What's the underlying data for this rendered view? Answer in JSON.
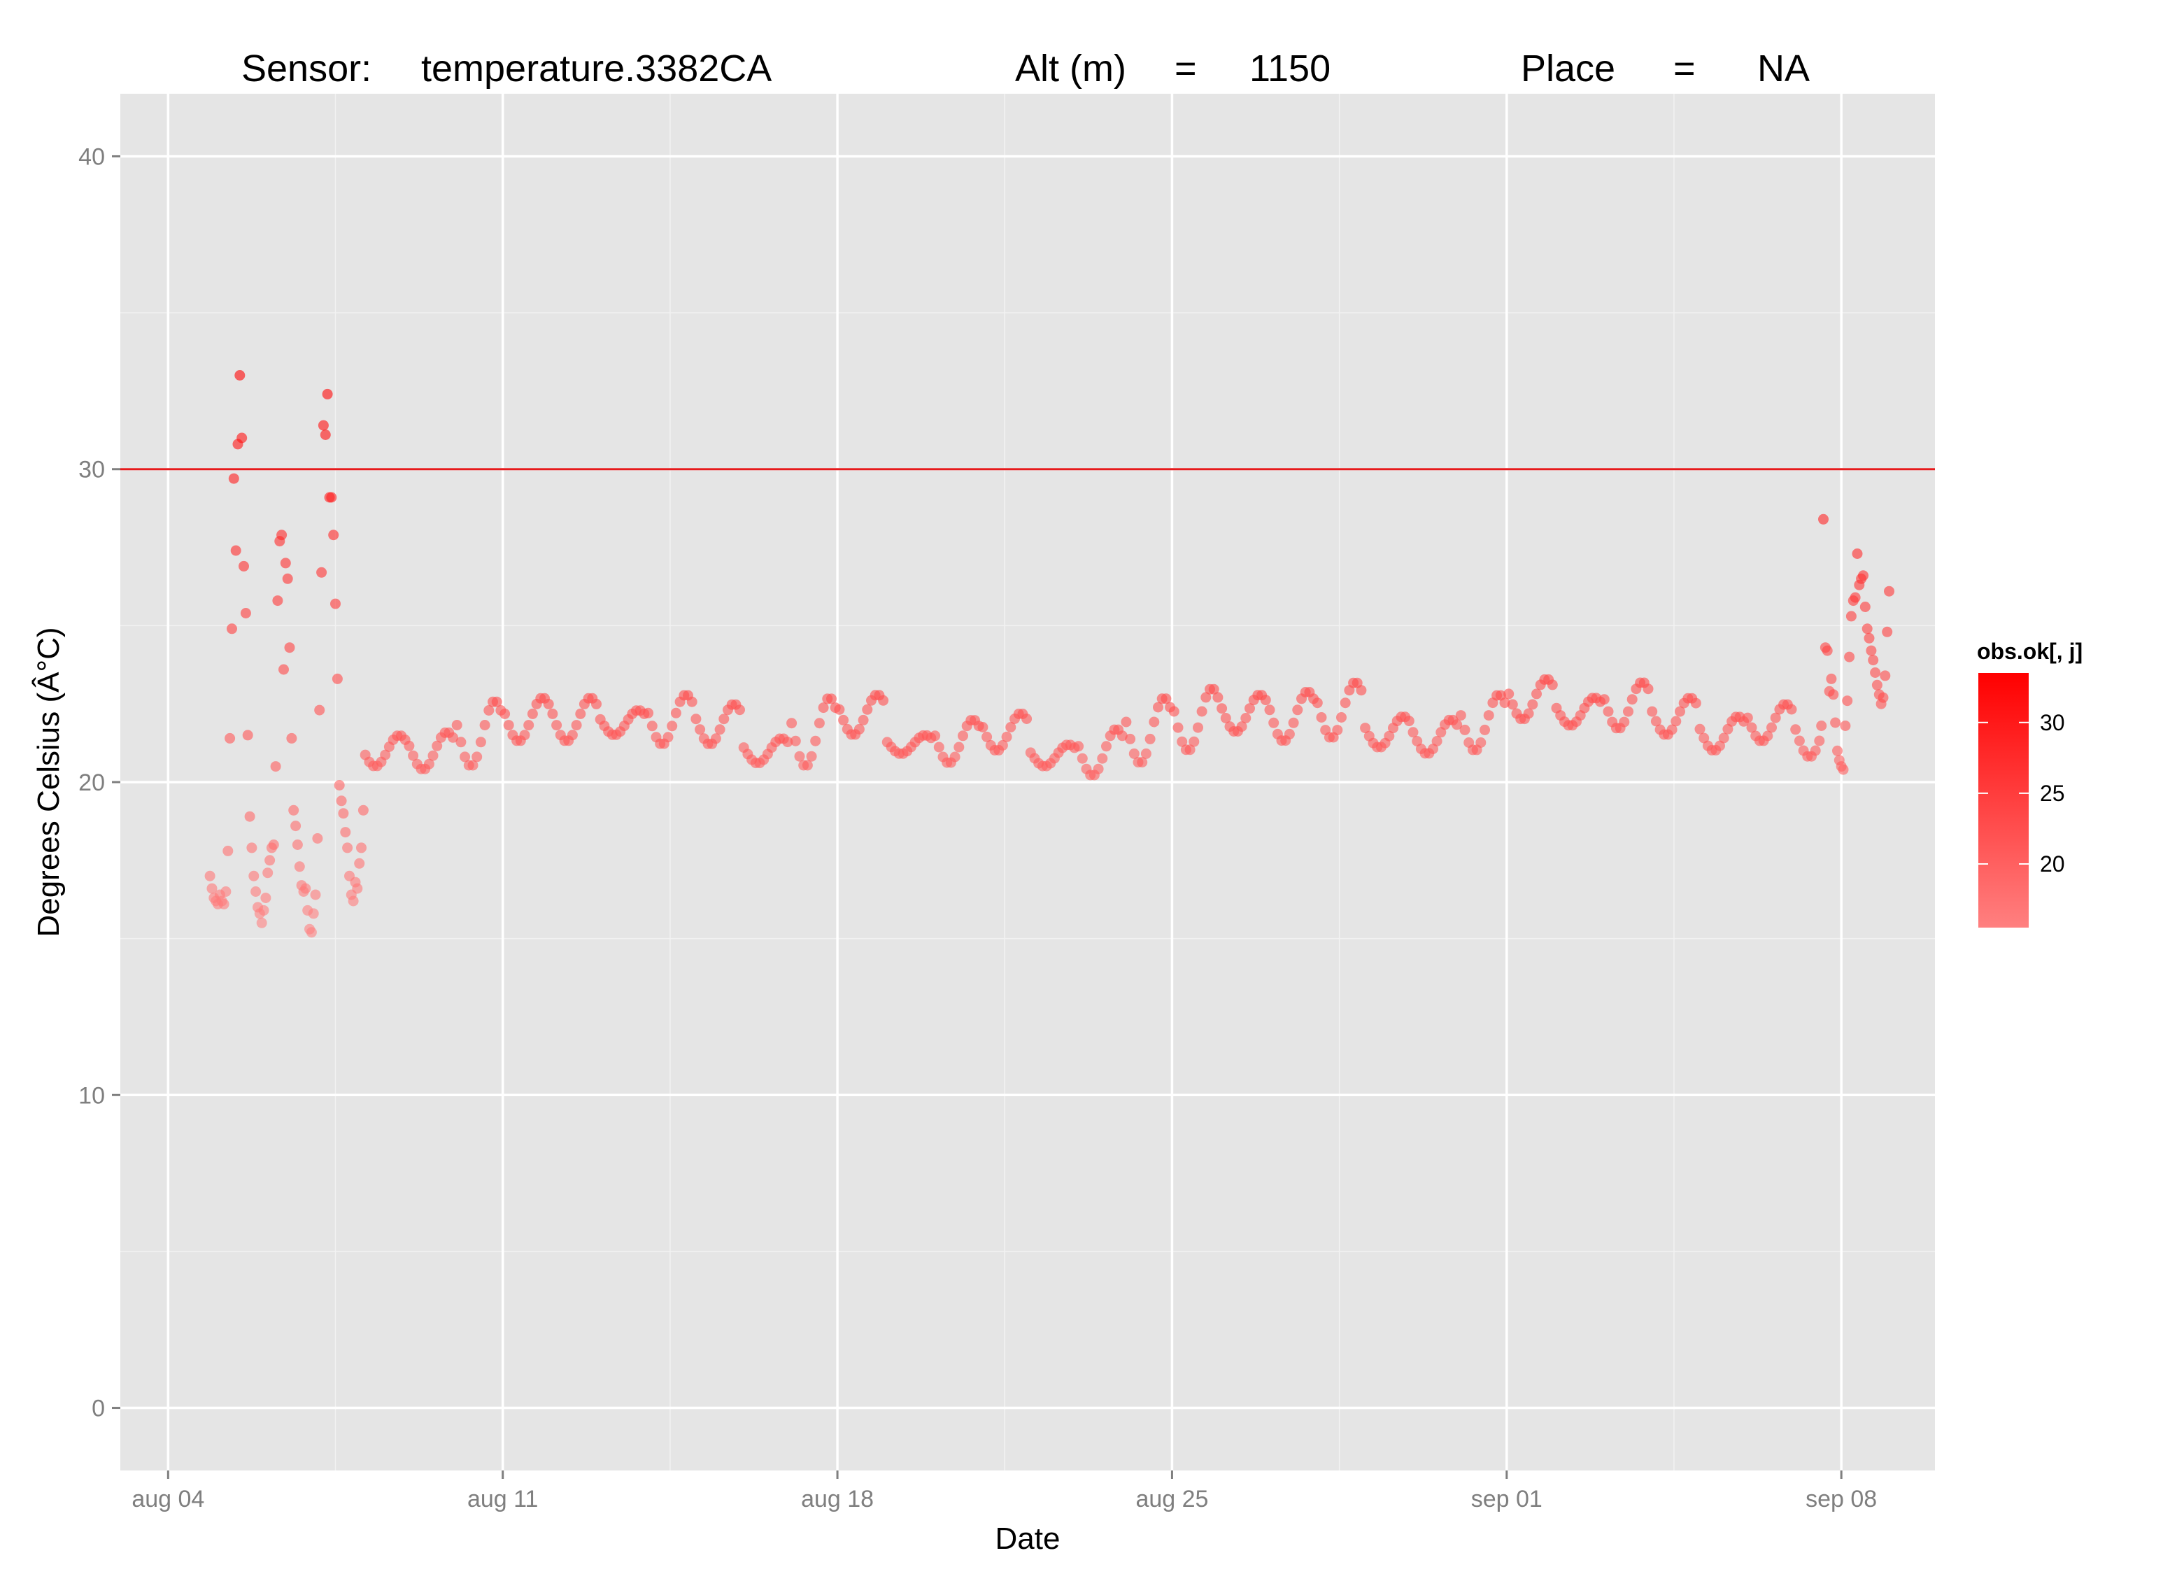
{
  "chart_data": {
    "type": "scatter",
    "title_parts": {
      "sensor_label": "Sensor:",
      "sensor_value": "temperature.3382CA",
      "alt_label": "Alt (m)",
      "alt_eq": "=",
      "alt_value": "1150",
      "place_label": "Place",
      "place_eq": "=",
      "place_value": "NA"
    },
    "xlabel": "Date",
    "ylabel": "Degrees Celsius (Â°C)",
    "xlim": [
      "2014-08-03T00:00",
      "2014-09-09T23:00"
    ],
    "ylim": [
      -2,
      42
    ],
    "x_ticks": [
      {
        "date": "2014-08-04",
        "label": "aug 04"
      },
      {
        "date": "2014-08-11",
        "label": "aug 11"
      },
      {
        "date": "2014-08-18",
        "label": "aug 18"
      },
      {
        "date": "2014-08-25",
        "label": "aug 25"
      },
      {
        "date": "2014-09-01",
        "label": "sep 01"
      },
      {
        "date": "2014-09-08",
        "label": "sep 08"
      }
    ],
    "y_ticks": [
      {
        "value": 0,
        "label": "0"
      },
      {
        "value": 10,
        "label": "10"
      },
      {
        "value": 20,
        "label": "20"
      },
      {
        "value": 30,
        "label": "30"
      },
      {
        "value": 40,
        "label": "40"
      }
    ],
    "grid": true,
    "reference_line": {
      "value": 30,
      "color": "#E41A1C"
    },
    "point_color_low": "#FF8080",
    "point_color_high": "#FF0000",
    "legend": {
      "title": "obs.ok[, j]",
      "position": "right",
      "range": [
        15.5,
        33.5
      ],
      "ticks": [
        {
          "value": 20,
          "label": "20"
        },
        {
          "value": 25,
          "label": "25"
        },
        {
          "value": 30,
          "label": "30"
        }
      ]
    },
    "series": [
      {
        "points": [
          [
            "2014-08-04T21:00",
            17.0
          ],
          [
            "2014-08-04T22:00",
            16.6
          ],
          [
            "2014-08-04T23:00",
            16.3
          ],
          [
            "2014-08-05T00:00",
            16.2
          ],
          [
            "2014-08-05T01:00",
            16.1
          ],
          [
            "2014-08-05T02:00",
            16.4
          ],
          [
            "2014-08-05T03:00",
            16.2
          ],
          [
            "2014-08-05T04:00",
            16.1
          ],
          [
            "2014-08-05T05:00",
            16.5
          ],
          [
            "2014-08-05T06:00",
            17.8
          ],
          [
            "2014-08-05T07:00",
            21.4
          ],
          [
            "2014-08-05T08:00",
            24.9
          ],
          [
            "2014-08-05T09:00",
            29.7
          ],
          [
            "2014-08-05T10:00",
            27.4
          ],
          [
            "2014-08-05T11:00",
            30.8
          ],
          [
            "2014-08-05T12:00",
            33.0
          ],
          [
            "2014-08-05T13:00",
            31.0
          ],
          [
            "2014-08-05T14:00",
            26.9
          ],
          [
            "2014-08-05T15:00",
            25.4
          ],
          [
            "2014-08-05T16:00",
            21.5
          ],
          [
            "2014-08-05T17:00",
            18.9
          ],
          [
            "2014-08-05T18:00",
            17.9
          ],
          [
            "2014-08-05T19:00",
            17.0
          ],
          [
            "2014-08-05T20:00",
            16.5
          ],
          [
            "2014-08-05T21:00",
            16.0
          ],
          [
            "2014-08-05T22:00",
            15.8
          ],
          [
            "2014-08-05T23:00",
            15.5
          ],
          [
            "2014-08-06T00:00",
            15.9
          ],
          [
            "2014-08-06T01:00",
            16.3
          ],
          [
            "2014-08-06T02:00",
            17.1
          ],
          [
            "2014-08-06T03:00",
            17.5
          ],
          [
            "2014-08-06T04:00",
            17.9
          ],
          [
            "2014-08-06T05:00",
            18.0
          ],
          [
            "2014-08-06T06:00",
            20.5
          ],
          [
            "2014-08-06T07:00",
            25.8
          ],
          [
            "2014-08-06T08:00",
            27.7
          ],
          [
            "2014-08-06T09:00",
            27.9
          ],
          [
            "2014-08-06T10:00",
            23.6
          ],
          [
            "2014-08-06T11:00",
            27.0
          ],
          [
            "2014-08-06T12:00",
            26.5
          ],
          [
            "2014-08-06T13:00",
            24.3
          ],
          [
            "2014-08-06T14:00",
            21.4
          ],
          [
            "2014-08-06T15:00",
            19.1
          ],
          [
            "2014-08-06T16:00",
            18.6
          ],
          [
            "2014-08-06T17:00",
            18.0
          ],
          [
            "2014-08-06T18:00",
            17.3
          ],
          [
            "2014-08-06T19:00",
            16.7
          ],
          [
            "2014-08-06T20:00",
            16.5
          ],
          [
            "2014-08-06T21:00",
            16.6
          ],
          [
            "2014-08-06T22:00",
            15.9
          ],
          [
            "2014-08-06T23:00",
            15.3
          ],
          [
            "2014-08-07T00:00",
            15.2
          ],
          [
            "2014-08-07T01:00",
            15.8
          ],
          [
            "2014-08-07T02:00",
            16.4
          ],
          [
            "2014-08-07T03:00",
            18.2
          ],
          [
            "2014-08-07T04:00",
            22.3
          ],
          [
            "2014-08-07T05:00",
            26.7
          ],
          [
            "2014-08-07T06:00",
            31.4
          ],
          [
            "2014-08-07T07:00",
            31.1
          ],
          [
            "2014-08-07T08:00",
            32.4
          ],
          [
            "2014-08-07T09:00",
            29.1
          ],
          [
            "2014-08-07T10:00",
            29.1
          ],
          [
            "2014-08-07T11:00",
            27.9
          ],
          [
            "2014-08-07T12:00",
            25.7
          ],
          [
            "2014-08-07T13:00",
            23.3
          ],
          [
            "2014-08-07T14:00",
            19.9
          ],
          [
            "2014-08-07T15:00",
            19.4
          ],
          [
            "2014-08-07T16:00",
            19.0
          ],
          [
            "2014-08-07T17:00",
            18.4
          ],
          [
            "2014-08-07T18:00",
            17.9
          ],
          [
            "2014-08-07T19:00",
            17.0
          ],
          [
            "2014-08-07T20:00",
            16.4
          ],
          [
            "2014-08-07T21:00",
            16.2
          ],
          [
            "2014-08-07T22:00",
            16.8
          ],
          [
            "2014-08-07T23:00",
            16.6
          ],
          [
            "2014-08-08T00:00",
            17.4
          ],
          [
            "2014-08-08T01:00",
            17.9
          ],
          [
            "2014-08-08T02:00",
            19.1
          ],
          [
            "2014-09-07T14:00",
            21.8
          ],
          [
            "2014-09-07T15:00",
            28.4
          ],
          [
            "2014-09-07T16:00",
            24.3
          ],
          [
            "2014-09-07T17:00",
            24.2
          ],
          [
            "2014-09-07T18:00",
            22.9
          ],
          [
            "2014-09-07T19:00",
            23.3
          ],
          [
            "2014-09-07T20:00",
            22.8
          ],
          [
            "2014-09-07T21:00",
            21.9
          ],
          [
            "2014-09-07T22:00",
            21.0
          ],
          [
            "2014-09-07T23:00",
            20.7
          ],
          [
            "2014-09-08T00:00",
            20.5
          ],
          [
            "2014-09-08T01:00",
            20.4
          ],
          [
            "2014-09-08T02:00",
            21.8
          ],
          [
            "2014-09-08T03:00",
            22.6
          ],
          [
            "2014-09-08T04:00",
            24.0
          ],
          [
            "2014-09-08T05:00",
            25.3
          ],
          [
            "2014-09-08T06:00",
            25.8
          ],
          [
            "2014-09-08T07:00",
            25.9
          ],
          [
            "2014-09-08T08:00",
            27.3
          ],
          [
            "2014-09-08T09:00",
            26.3
          ],
          [
            "2014-09-08T10:00",
            26.5
          ],
          [
            "2014-09-08T11:00",
            26.6
          ],
          [
            "2014-09-08T12:00",
            25.6
          ],
          [
            "2014-09-08T13:00",
            24.9
          ],
          [
            "2014-09-08T14:00",
            24.6
          ],
          [
            "2014-09-08T15:00",
            24.2
          ],
          [
            "2014-09-08T16:00",
            23.9
          ],
          [
            "2014-09-08T17:00",
            23.5
          ],
          [
            "2014-09-08T18:00",
            23.1
          ],
          [
            "2014-09-08T19:00",
            22.8
          ],
          [
            "2014-09-08T20:00",
            22.5
          ],
          [
            "2014-09-08T21:00",
            22.7
          ],
          [
            "2014-09-08T22:00",
            23.4
          ],
          [
            "2014-09-08T23:00",
            24.8
          ],
          [
            "2014-09-09T00:00",
            26.1
          ]
        ],
        "daily_cycle": {
          "start": "2014-08-08T03:00",
          "end": "2014-09-07T13:00",
          "step_hours": 2,
          "days": [
            {
              "date": "2014-08-08",
              "min": 20.5,
              "max": 21.5
            },
            {
              "date": "2014-08-09",
              "min": 20.4,
              "max": 21.6
            },
            {
              "date": "2014-08-10",
              "min": 20.5,
              "max": 22.6
            },
            {
              "date": "2014-08-11",
              "min": 21.3,
              "max": 22.7
            },
            {
              "date": "2014-08-12",
              "min": 21.3,
              "max": 22.7
            },
            {
              "date": "2014-08-13",
              "min": 21.5,
              "max": 22.3
            },
            {
              "date": "2014-08-14",
              "min": 21.2,
              "max": 22.8
            },
            {
              "date": "2014-08-15",
              "min": 21.2,
              "max": 22.5
            },
            {
              "date": "2014-08-16",
              "min": 20.6,
              "max": 21.4
            },
            {
              "date": "2014-08-17",
              "min": 20.5,
              "max": 22.7
            },
            {
              "date": "2014-08-18",
              "min": 21.5,
              "max": 22.8
            },
            {
              "date": "2014-08-19",
              "min": 20.9,
              "max": 21.5
            },
            {
              "date": "2014-08-20",
              "min": 20.6,
              "max": 22.0
            },
            {
              "date": "2014-08-21",
              "min": 21.0,
              "max": 22.2
            },
            {
              "date": "2014-08-22",
              "min": 20.5,
              "max": 21.2
            },
            {
              "date": "2014-08-23",
              "min": 20.2,
              "max": 21.7
            },
            {
              "date": "2014-08-24",
              "min": 20.6,
              "max": 22.7
            },
            {
              "date": "2014-08-25",
              "min": 21.0,
              "max": 23.0
            },
            {
              "date": "2014-08-26",
              "min": 21.6,
              "max": 22.8
            },
            {
              "date": "2014-08-27",
              "min": 21.3,
              "max": 22.9
            },
            {
              "date": "2014-08-28",
              "min": 21.4,
              "max": 23.2
            },
            {
              "date": "2014-08-29",
              "min": 21.1,
              "max": 22.1
            },
            {
              "date": "2014-08-30",
              "min": 20.9,
              "max": 22.0
            },
            {
              "date": "2014-08-31",
              "min": 21.0,
              "max": 22.8
            },
            {
              "date": "2014-09-01",
              "min": 22.0,
              "max": 23.3
            },
            {
              "date": "2014-09-02",
              "min": 21.8,
              "max": 22.7
            },
            {
              "date": "2014-09-03",
              "min": 21.7,
              "max": 23.2
            },
            {
              "date": "2014-09-04",
              "min": 21.5,
              "max": 22.7
            },
            {
              "date": "2014-09-05",
              "min": 21.0,
              "max": 22.1
            },
            {
              "date": "2014-09-06",
              "min": 21.3,
              "max": 22.5
            },
            {
              "date": "2014-09-07",
              "min": 20.8,
              "max": 22.2
            }
          ]
        }
      }
    ]
  }
}
